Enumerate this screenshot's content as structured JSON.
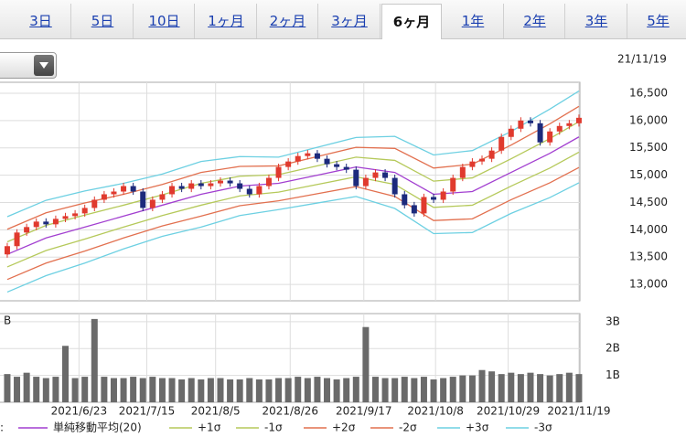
{
  "tabs": [
    "3日",
    "5日",
    "10日",
    "1ヶ月",
    "2ヶ月",
    "3ヶ月",
    "6ヶ月",
    "1年",
    "2年",
    "3年",
    "5年"
  ],
  "selected_tab_index": 6,
  "date": "21/11/19",
  "legend_prefix": ":",
  "chart_data": [
    {
      "type": "candlestick",
      "open": [
        13550,
        13700,
        13950,
        14050,
        14150,
        14100,
        14200,
        14250,
        14300,
        14400,
        14550,
        14650,
        14700,
        14800,
        14700,
        14400,
        14550,
        14650,
        14800,
        14750,
        14850,
        14800,
        14850,
        14900,
        14850,
        14750,
        14650,
        14800,
        14950,
        15150,
        15250,
        15350,
        15400,
        15300,
        15200,
        15150,
        15100,
        14800,
        14950,
        15050,
        14950,
        14650,
        14450,
        14300,
        14600,
        14550,
        14700,
        14950,
        15150,
        15250,
        15300,
        15450,
        15700,
        15850,
        16000,
        15950,
        15600,
        15800,
        15900,
        15950
      ],
      "high": [
        13760,
        14010,
        14110,
        14210,
        14210,
        14260,
        14310,
        14360,
        14460,
        14610,
        14710,
        14760,
        14860,
        14860,
        14760,
        14610,
        14710,
        14860,
        14860,
        14910,
        14910,
        14910,
        14960,
        14960,
        14910,
        14810,
        14860,
        15010,
        15210,
        15310,
        15410,
        15460,
        15460,
        15360,
        15260,
        15210,
        15160,
        15010,
        15110,
        15110,
        15010,
        14710,
        14510,
        14660,
        14660,
        14760,
        15010,
        15210,
        15310,
        15360,
        15510,
        15760,
        15910,
        16060,
        16060,
        16010,
        15860,
        15960,
        16010,
        16110
      ],
      "low": [
        13490,
        13640,
        13890,
        13990,
        14040,
        14040,
        14140,
        14190,
        14240,
        14340,
        14490,
        14590,
        14640,
        14640,
        14340,
        14340,
        14490,
        14590,
        14690,
        14690,
        14740,
        14740,
        14790,
        14790,
        14690,
        14590,
        14590,
        14740,
        14890,
        15090,
        15190,
        15290,
        15240,
        15140,
        15090,
        15040,
        14740,
        14740,
        14890,
        14890,
        14590,
        14390,
        14240,
        14240,
        14490,
        14490,
        14640,
        14890,
        15090,
        15190,
        15240,
        15390,
        15640,
        15790,
        15890,
        15540,
        15540,
        15740,
        15840,
        15890
      ],
      "close": [
        13700,
        13950,
        14050,
        14150,
        14100,
        14200,
        14250,
        14300,
        14400,
        14550,
        14650,
        14700,
        14800,
        14700,
        14400,
        14550,
        14650,
        14800,
        14750,
        14850,
        14800,
        14850,
        14900,
        14850,
        14750,
        14650,
        14800,
        14950,
        15150,
        15250,
        15350,
        15400,
        15300,
        15200,
        15150,
        15100,
        14800,
        14950,
        15050,
        14950,
        14650,
        14450,
        14300,
        14600,
        14550,
        14700,
        14950,
        15150,
        15250,
        15300,
        15450,
        15700,
        15850,
        16000,
        15950,
        15600,
        15800,
        15900,
        15950,
        16050
      ],
      "up_color": "#e03a2e",
      "down_color": "#1c2a7c",
      "band_x": [
        0,
        4,
        8,
        12,
        16,
        20,
        24,
        28,
        32,
        36,
        40,
        44,
        48,
        52,
        56,
        59
      ],
      "series": [
        {
          "name": "単純移動平均(20)",
          "color": "#a23fd0",
          "values": [
            13550,
            13850,
            14050,
            14250,
            14450,
            14650,
            14800,
            14850,
            15000,
            15150,
            15050,
            14650,
            14700,
            15050,
            15400,
            15700
          ]
        },
        {
          "name": "+1σ",
          "color": "#b5c95a",
          "values": [
            13780,
            14080,
            14270,
            14450,
            14640,
            14850,
            14980,
            15010,
            15170,
            15330,
            15270,
            14890,
            14950,
            15300,
            15670,
            15980
          ]
        },
        {
          "name": "-1σ",
          "color": "#b5c95a",
          "values": [
            13320,
            13620,
            13830,
            14050,
            14260,
            14450,
            14620,
            14690,
            14830,
            14970,
            14830,
            14410,
            14450,
            14800,
            15130,
            15420
          ]
        },
        {
          "name": "+2σ",
          "color": "#e2704f",
          "values": [
            14010,
            14310,
            14490,
            14650,
            14830,
            15050,
            15160,
            15170,
            15340,
            15510,
            15490,
            15130,
            15200,
            15550,
            15940,
            16260
          ]
        },
        {
          "name": "-2σ",
          "color": "#e2704f",
          "values": [
            13090,
            13390,
            13610,
            13850,
            14070,
            14250,
            14440,
            14530,
            14660,
            14790,
            14610,
            14170,
            14200,
            14550,
            14860,
            15140
          ]
        },
        {
          "name": "+3σ",
          "color": "#6dd0e2",
          "values": [
            14240,
            14540,
            14710,
            14850,
            15020,
            15250,
            15340,
            15330,
            15510,
            15690,
            15710,
            15370,
            15450,
            15800,
            16210,
            16540
          ]
        },
        {
          "name": "-3σ",
          "color": "#6dd0e2",
          "values": [
            12860,
            13160,
            13390,
            13650,
            13880,
            14050,
            14260,
            14370,
            14490,
            14610,
            14390,
            13930,
            13950,
            14300,
            14590,
            14860
          ]
        }
      ],
      "ylim": [
        12700,
        16700
      ],
      "yticks": [
        {
          "value": 13000,
          "label": "13,000"
        },
        {
          "value": 13500,
          "label": "13,500"
        },
        {
          "value": 14000,
          "label": "14,000"
        },
        {
          "value": 14500,
          "label": "14,500"
        },
        {
          "value": 15000,
          "label": "15,000"
        },
        {
          "value": 15500,
          "label": "15,500"
        },
        {
          "value": 16000,
          "label": "16,000"
        },
        {
          "value": 16500,
          "label": "16,500"
        }
      ],
      "xlim": [
        -0.75,
        59.1
      ],
      "grid": true
    },
    {
      "type": "bar",
      "unit_label": "B",
      "values": [
        1.05,
        0.95,
        1.1,
        0.95,
        0.9,
        0.95,
        2.1,
        0.9,
        0.95,
        3.1,
        0.95,
        0.9,
        0.9,
        0.95,
        0.9,
        0.95,
        0.9,
        0.9,
        0.85,
        0.9,
        0.85,
        0.9,
        0.9,
        0.85,
        0.85,
        0.9,
        0.85,
        0.85,
        0.9,
        0.9,
        0.95,
        0.9,
        0.95,
        0.9,
        0.85,
        0.9,
        0.95,
        2.8,
        0.95,
        0.9,
        0.9,
        0.95,
        0.9,
        0.95,
        0.85,
        0.9,
        0.95,
        1.0,
        1.0,
        1.2,
        1.15,
        1.05,
        1.1,
        1.05,
        1.1,
        1.05,
        1.0,
        1.05,
        1.1,
        1.05
      ],
      "color": "#6a6a6a",
      "ylim": [
        0,
        3.3
      ],
      "yticks": [
        {
          "value": 1,
          "label": "1B"
        },
        {
          "value": 2,
          "label": "2B"
        },
        {
          "value": 3,
          "label": "3B"
        }
      ],
      "xlim": [
        -0.75,
        59.1
      ],
      "xticks": [
        {
          "value": 7.4,
          "label": "2021/6/23"
        },
        {
          "value": 14.4,
          "label": "2021/7/15"
        },
        {
          "value": 21.5,
          "label": "2021/8/5"
        },
        {
          "value": 29.2,
          "label": "2021/8/26"
        },
        {
          "value": 36.8,
          "label": "2021/9/17"
        },
        {
          "value": 44.2,
          "label": "2021/10/8"
        },
        {
          "value": 51.7,
          "label": "2021/10/29"
        },
        {
          "value": 59,
          "label": "2021/11/19"
        }
      ],
      "grid": true
    }
  ]
}
